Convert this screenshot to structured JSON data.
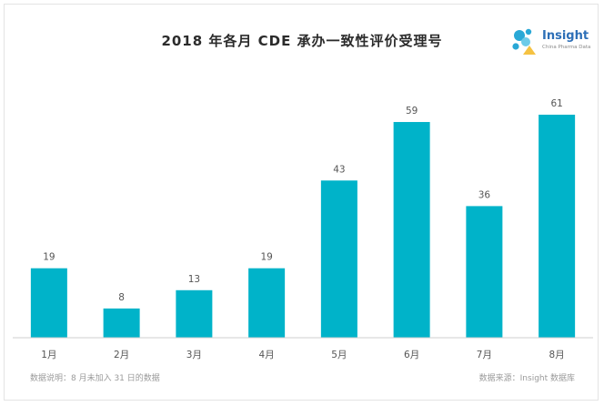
{
  "title": "2018 年各月 CDE 承办一致性评价受理号",
  "logo": {
    "name": "Insight",
    "subtitle": "China Pharma Data"
  },
  "footnote_left": "数据说明：8 月未加入 31 日的数据",
  "footnote_right": "数据来源：Insight 数据库",
  "colors": {
    "bar": "#00b3c9",
    "axis": "#cfcfcf",
    "text": "#555555"
  },
  "chart_data": {
    "type": "bar",
    "title": "2018 年各月 CDE 承办一致性评价受理号",
    "categories": [
      "1月",
      "2月",
      "3月",
      "4月",
      "5月",
      "6月",
      "7月",
      "8月"
    ],
    "values": [
      19,
      8,
      13,
      19,
      43,
      59,
      36,
      61
    ],
    "xlabel": "",
    "ylabel": "",
    "ylim": [
      0,
      61
    ],
    "grid": false,
    "legend": "none"
  }
}
